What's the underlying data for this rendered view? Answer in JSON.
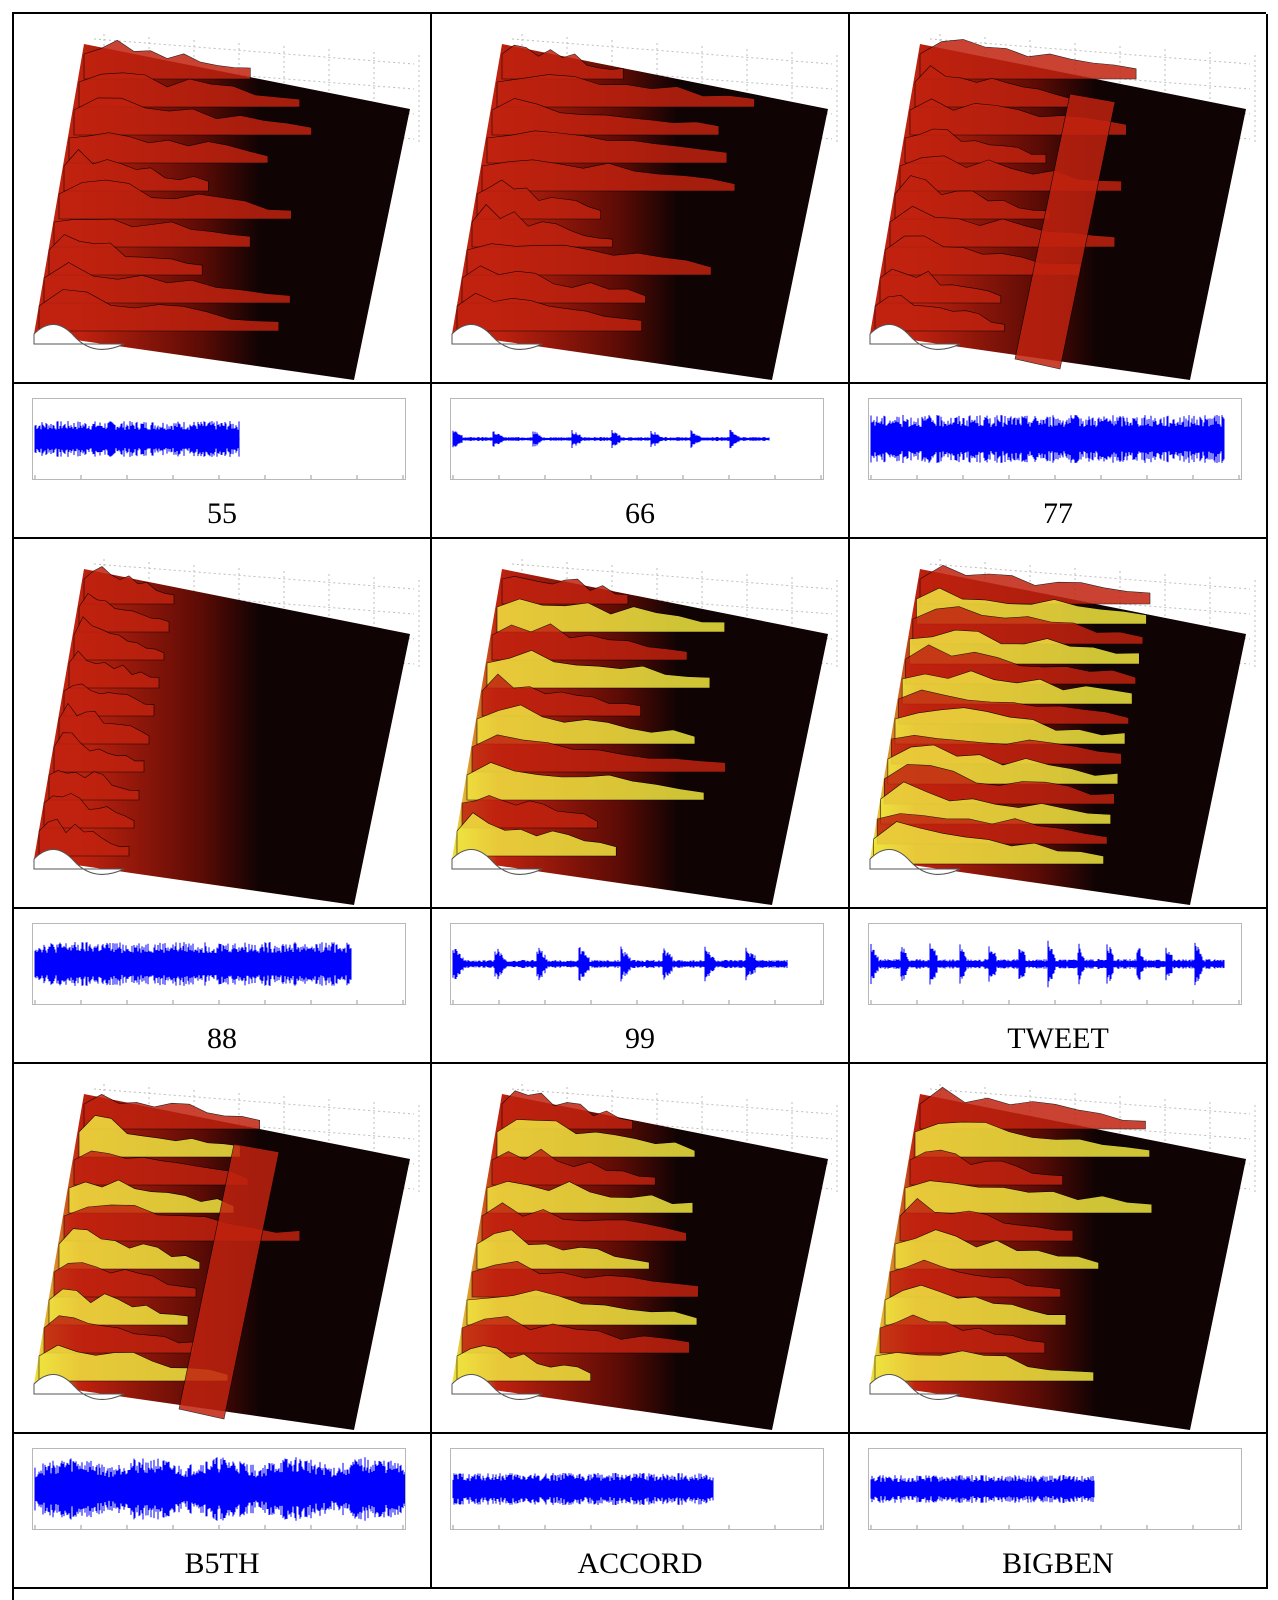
{
  "figure": {
    "rows": 3,
    "columns": 3,
    "panels": [
      {
        "label": "55",
        "wave": {
          "style": "noisy",
          "amp": 0.45,
          "segments": 1,
          "fill": 0.55
        },
        "surface": {
          "ridges": "many-left",
          "warm": "red"
        }
      },
      {
        "label": "66",
        "wave": {
          "style": "spiky",
          "amp": 0.2,
          "segments": 8,
          "fill": 0.85
        },
        "surface": {
          "ridges": "horizontal",
          "warm": "red"
        }
      },
      {
        "label": "77",
        "wave": {
          "style": "dense",
          "amp": 0.6,
          "segments": 1,
          "fill": 0.95
        },
        "surface": {
          "ridges": "two-bands",
          "warm": "red"
        }
      },
      {
        "label": "88",
        "wave": {
          "style": "dense",
          "amp": 0.55,
          "segments": 3,
          "fill": 0.85
        },
        "surface": {
          "ridges": "one-band",
          "warm": "red"
        }
      },
      {
        "label": "99",
        "wave": {
          "style": "bursts",
          "amp": 0.4,
          "segments": 8,
          "fill": 0.9
        },
        "surface": {
          "ridges": "waves",
          "warm": "yellow"
        }
      },
      {
        "label": "TWEET",
        "wave": {
          "style": "bursts",
          "amp": 0.5,
          "segments": 12,
          "fill": 0.95
        },
        "surface": {
          "ridges": "full",
          "warm": "yellow"
        }
      },
      {
        "label": "B5TH",
        "wave": {
          "style": "blobs",
          "amp": 0.8,
          "segments": 5,
          "fill": 1.0
        },
        "surface": {
          "ridges": "two-peaks",
          "warm": "yellow"
        }
      },
      {
        "label": "ACCORD",
        "wave": {
          "style": "noisy",
          "amp": 0.4,
          "segments": 1,
          "fill": 0.7
        },
        "surface": {
          "ridges": "many-left",
          "warm": "yellow"
        }
      },
      {
        "label": "BIGBEN",
        "wave": {
          "style": "noisy",
          "amp": 0.35,
          "segments": 1,
          "fill": 0.6
        },
        "surface": {
          "ridges": "patches",
          "warm": "yellow"
        }
      }
    ]
  },
  "colors": {
    "wave": "#0000ff",
    "surface_dark": "#100303",
    "surface_red": "#c0220f",
    "surface_yellow": "#f0e640",
    "grid": "#bdbdbd"
  }
}
